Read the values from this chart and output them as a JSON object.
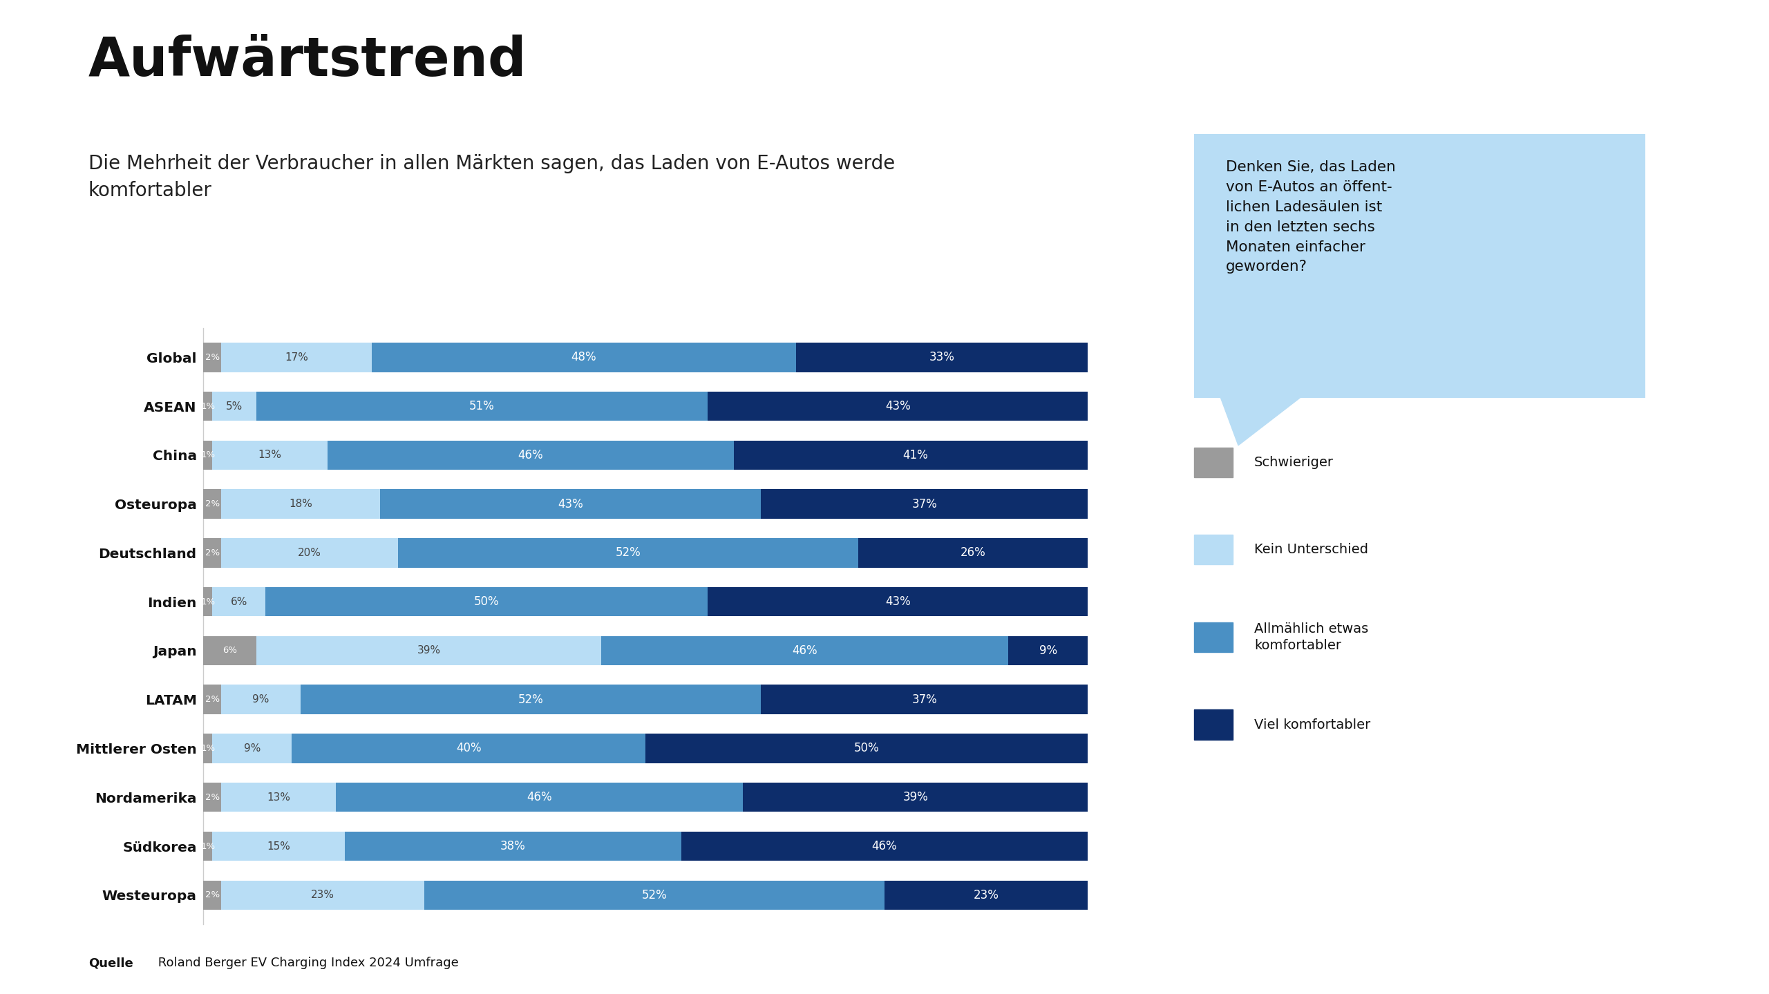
{
  "title": "Aufwärtstrend",
  "subtitle": "Die Mehrheit der Verbraucher in allen Märkten sagen, das Laden von E-Autos werde\nkomfortabler",
  "source_bold": "Quelle",
  "source_rest": " Roland Berger EV Charging Index 2024 Umfrage",
  "categories": [
    "Global",
    "ASEAN",
    "China",
    "Osteuropa",
    "Deutschland",
    "Indien",
    "Japan",
    "LATAM",
    "Mittlerer Osten",
    "Nordamerika",
    "Südkorea",
    "Westeuropa"
  ],
  "data": {
    "schwieriger": [
      2,
      1,
      1,
      2,
      2,
      1,
      6,
      2,
      1,
      2,
      1,
      2
    ],
    "kein_unterschied": [
      17,
      5,
      13,
      18,
      20,
      6,
      39,
      9,
      9,
      13,
      15,
      23
    ],
    "allmählich": [
      48,
      51,
      46,
      43,
      52,
      50,
      46,
      52,
      40,
      46,
      38,
      52
    ],
    "viel": [
      33,
      43,
      41,
      37,
      26,
      43,
      9,
      37,
      50,
      39,
      46,
      23
    ]
  },
  "colors": {
    "schwieriger": "#9b9b9b",
    "kein_unterschied": "#b8ddf5",
    "allmählich": "#4a90c4",
    "viel": "#0d2d6b"
  },
  "legend_labels": [
    "Schwieriger",
    "Kein Unterschied",
    "Allmählich etwas\nkomfortabler",
    "Viel komfortabler"
  ],
  "callout_text": "Denken Sie, das Laden\nvon E-Autos an öffent-\nlichen Ladesäulen ist\nin den letzten sechs\nMonaten einfacher\ngeworden?",
  "callout_color": "#b8ddf5",
  "background_color": "#ffffff",
  "bar_height": 0.6,
  "figsize": [
    25.6,
    14.39
  ],
  "dpi": 100
}
